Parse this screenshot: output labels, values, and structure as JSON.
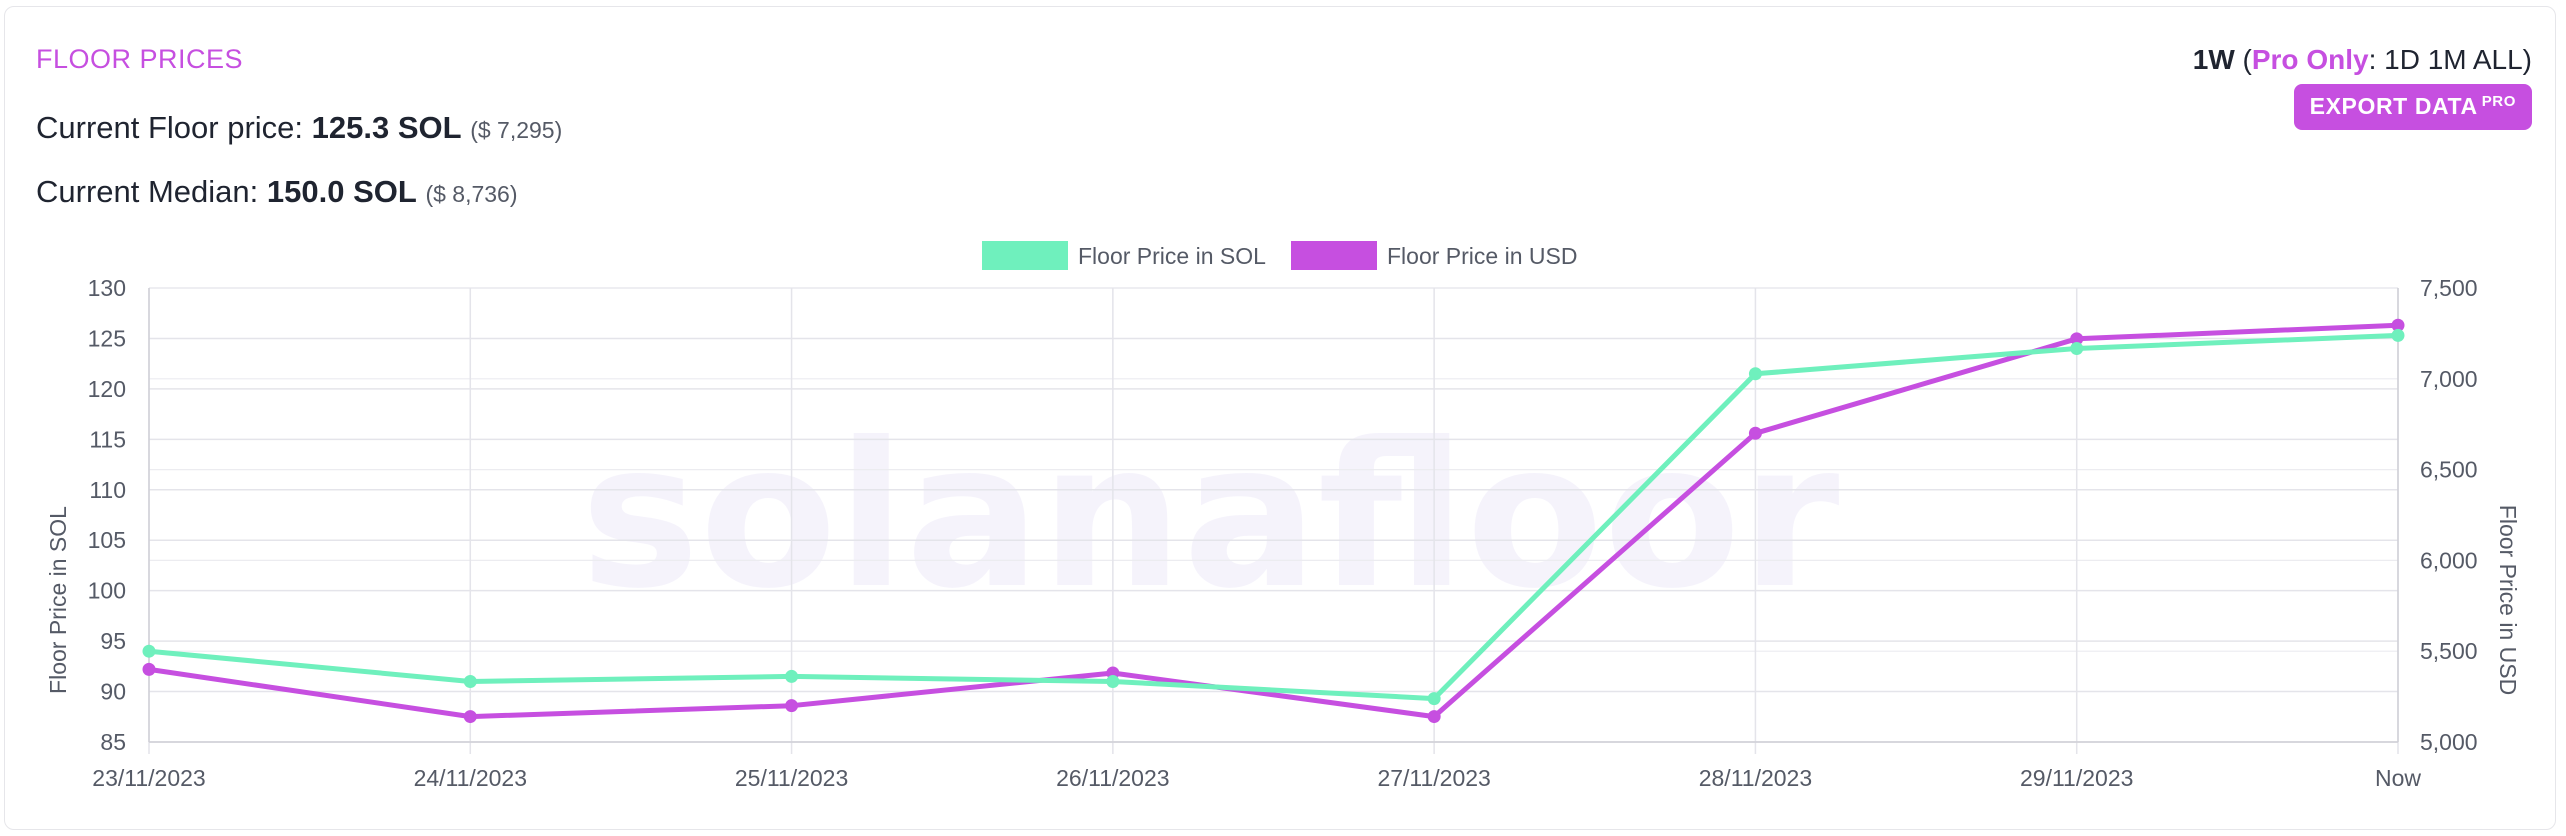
{
  "header": {
    "title": "FLOOR PRICES",
    "floor_label": "Current Floor price: ",
    "floor_value": "125.3 SOL",
    "floor_usd": "($ 7,295)",
    "median_label": "Current Median: ",
    "median_value": "150.0 SOL",
    "median_usd": "($ 8,736)"
  },
  "range": {
    "current": "1W",
    "open_paren": " (",
    "pro_label": "Pro Only",
    "colon": ": ",
    "options": [
      "1D",
      "1M",
      "ALL"
    ],
    "close_paren": ")"
  },
  "export": {
    "label": "EXPORT DATA",
    "badge": "PRO"
  },
  "watermark": "solanafloor",
  "colors": {
    "accent": "#c64fe0",
    "sol_series": "#6ff0bd",
    "usd_series": "#c64fe0"
  },
  "chart_data": {
    "type": "line",
    "categories": [
      "23/11/2023",
      "24/11/2023",
      "25/11/2023",
      "26/11/2023",
      "27/11/2023",
      "28/11/2023",
      "29/11/2023",
      "Now"
    ],
    "series": [
      {
        "name": "Floor Price in SOL",
        "axis": "left",
        "color": "#6ff0bd",
        "values": [
          94.0,
          91.0,
          91.5,
          91.0,
          89.3,
          121.5,
          124.0,
          125.3
        ]
      },
      {
        "name": "Floor Price in USD",
        "axis": "right",
        "color": "#c64fe0",
        "values": [
          5400,
          5140,
          5200,
          5380,
          5140,
          6700,
          7220,
          7295
        ]
      }
    ],
    "y_left": {
      "label": "Floor Price in SOL",
      "min": 85,
      "max": 130,
      "ticks": [
        85,
        90,
        95,
        100,
        105,
        110,
        115,
        120,
        125,
        130
      ]
    },
    "y_right": {
      "label": "Floor Price in USD",
      "min": 5000,
      "max": 7500,
      "ticks": [
        5000,
        5500,
        6000,
        6500,
        7000,
        7500
      ],
      "tick_labels": [
        "5,000",
        "5,500",
        "6,000",
        "6,500",
        "7,000",
        "7,500"
      ]
    },
    "grid": true,
    "legend": "top-center"
  }
}
